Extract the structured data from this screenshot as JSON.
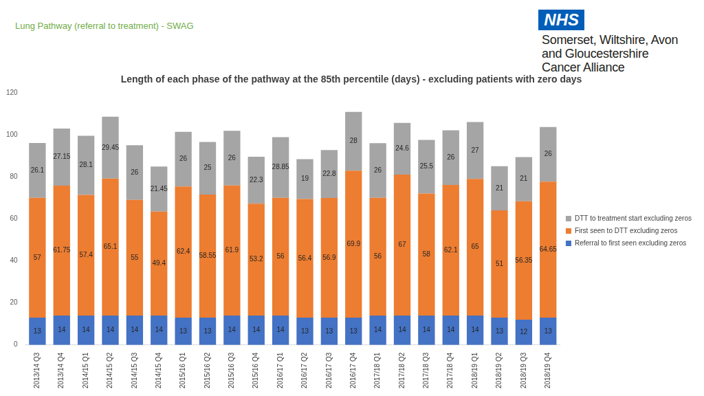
{
  "page": {
    "header": "Lung Pathway (referral to treatment) - SWAG",
    "logo": "NHS",
    "organisation": [
      "Somerset, Wiltshire, Avon",
      "and Gloucestershire",
      "Cancer Alliance"
    ]
  },
  "chart_data": {
    "type": "bar",
    "title": "Length of each phase of the pathway at the 85th percentile (days) - excluding patients with zero days",
    "categories": [
      "2013/14 Q3",
      "2013/14 Q4",
      "2014/15 Q1",
      "2014/15 Q2",
      "2014/15 Q3",
      "2014/15 Q4",
      "2015/16 Q1",
      "2015/16 Q2",
      "2015/16 Q3",
      "2015/16 Q4",
      "2016/17 Q1",
      "2016/17 Q2",
      "2016/17 Q3",
      "2016/17 Q4",
      "2017/18 Q1",
      "2017/18 Q2",
      "2017/18 Q3",
      "2017/18 Q4",
      "2018/19 Q1",
      "2018/19 Q2",
      "2018/19 Q3",
      "2018/19 Q4"
    ],
    "series": [
      {
        "name": "Referral to first seen excluding zeros",
        "color": "#4472c4",
        "values": [
          13,
          14,
          14,
          14,
          14,
          14,
          13,
          13,
          14,
          14,
          14,
          13,
          13,
          13,
          14,
          14,
          14,
          14,
          14,
          13,
          12,
          13
        ]
      },
      {
        "name": "First seen to DTT excluding zeros",
        "color": "#ed7d31",
        "values": [
          57,
          61.75,
          57.4,
          65.1,
          55,
          49.4,
          62.4,
          58.55,
          61.9,
          53.2,
          56,
          56.4,
          56.9,
          69.9,
          56,
          67,
          58,
          62.1,
          65,
          51,
          56.35,
          64.65
        ]
      },
      {
        "name": "DTT to treatment start excluding zeros",
        "color": "#a5a5a5",
        "values": [
          26.1,
          27.15,
          28.1,
          29.45,
          26,
          21.45,
          26,
          25,
          26,
          22.3,
          28.85,
          19,
          22.8,
          28,
          26,
          24.6,
          25.5,
          26,
          27,
          21,
          21,
          26
        ]
      }
    ],
    "ylim": [
      0,
      120
    ],
    "yticks": [
      0,
      20,
      40,
      60,
      80,
      100,
      120
    ],
    "stacked": true,
    "data_labels": true,
    "legend": "right",
    "grid": false
  }
}
